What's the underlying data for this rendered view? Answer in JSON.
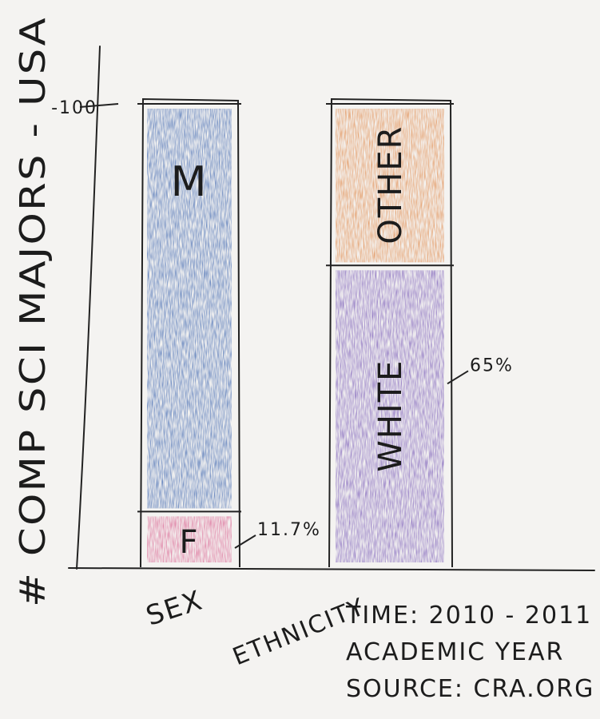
{
  "chart_data": {
    "type": "bar",
    "stacked": true,
    "ylabel": "# COMP SCI MAJORS - USA",
    "ylim": [
      0,
      100
    ],
    "y_tick_labels": [
      "100"
    ],
    "categories": [
      "SEX",
      "ETHNICITY"
    ],
    "bars": [
      {
        "category": "SEX",
        "segments": [
          {
            "name": "F",
            "value": 11.7,
            "label": "11.7%",
            "color": "#d9608f"
          },
          {
            "name": "M",
            "value": 88.3,
            "label": "",
            "color": "#3f67b0"
          }
        ]
      },
      {
        "category": "ETHNICITY",
        "segments": [
          {
            "name": "WHITE",
            "value": 65,
            "label": "65%",
            "color": "#7a5cb8"
          },
          {
            "name": "OTHER",
            "value": 35,
            "label": "",
            "color": "#e08a4c"
          }
        ]
      }
    ]
  },
  "notes": {
    "time": "TIME: 2010 - 2011",
    "year": "ACADEMIC YEAR",
    "source": "SOURCE: CRA.ORG"
  }
}
